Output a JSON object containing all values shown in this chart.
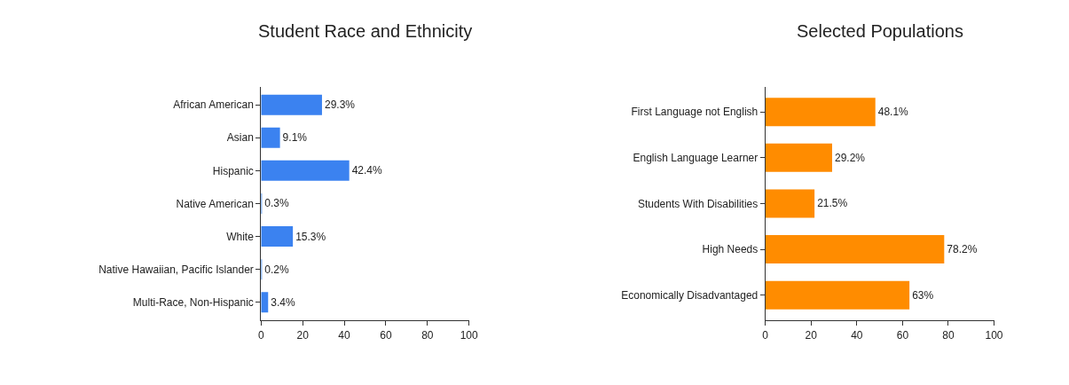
{
  "chart_data": [
    {
      "type": "bar",
      "orientation": "horizontal",
      "title": "Student Race and Ethnicity",
      "categories": [
        "African American",
        "Asian",
        "Hispanic",
        "Native American",
        "White",
        "Native Hawaiian, Pacific Islander",
        "Multi-Race, Non-Hispanic"
      ],
      "values": [
        29.3,
        9.1,
        42.4,
        0.3,
        15.3,
        0.2,
        3.4
      ],
      "value_labels": [
        "29.3%",
        "9.1%",
        "42.4%",
        "0.3%",
        "15.3%",
        "0.2%",
        "3.4%"
      ],
      "color": "#3b82f0",
      "xlim": [
        0,
        100
      ],
      "xticks": [
        0,
        20,
        40,
        60,
        80,
        100
      ]
    },
    {
      "type": "bar",
      "orientation": "horizontal",
      "title": "Selected Populations",
      "categories": [
        "First Language not English",
        "English Language Learner",
        "Students With Disabilities",
        "High Needs",
        "Economically Disadvantaged"
      ],
      "values": [
        48.1,
        29.2,
        21.5,
        78.2,
        63
      ],
      "value_labels": [
        "48.1%",
        "29.2%",
        "21.5%",
        "78.2%",
        "63%"
      ],
      "color": "#ff8c00",
      "xlim": [
        0,
        100
      ],
      "xticks": [
        0,
        20,
        40,
        60,
        80,
        100
      ]
    }
  ]
}
